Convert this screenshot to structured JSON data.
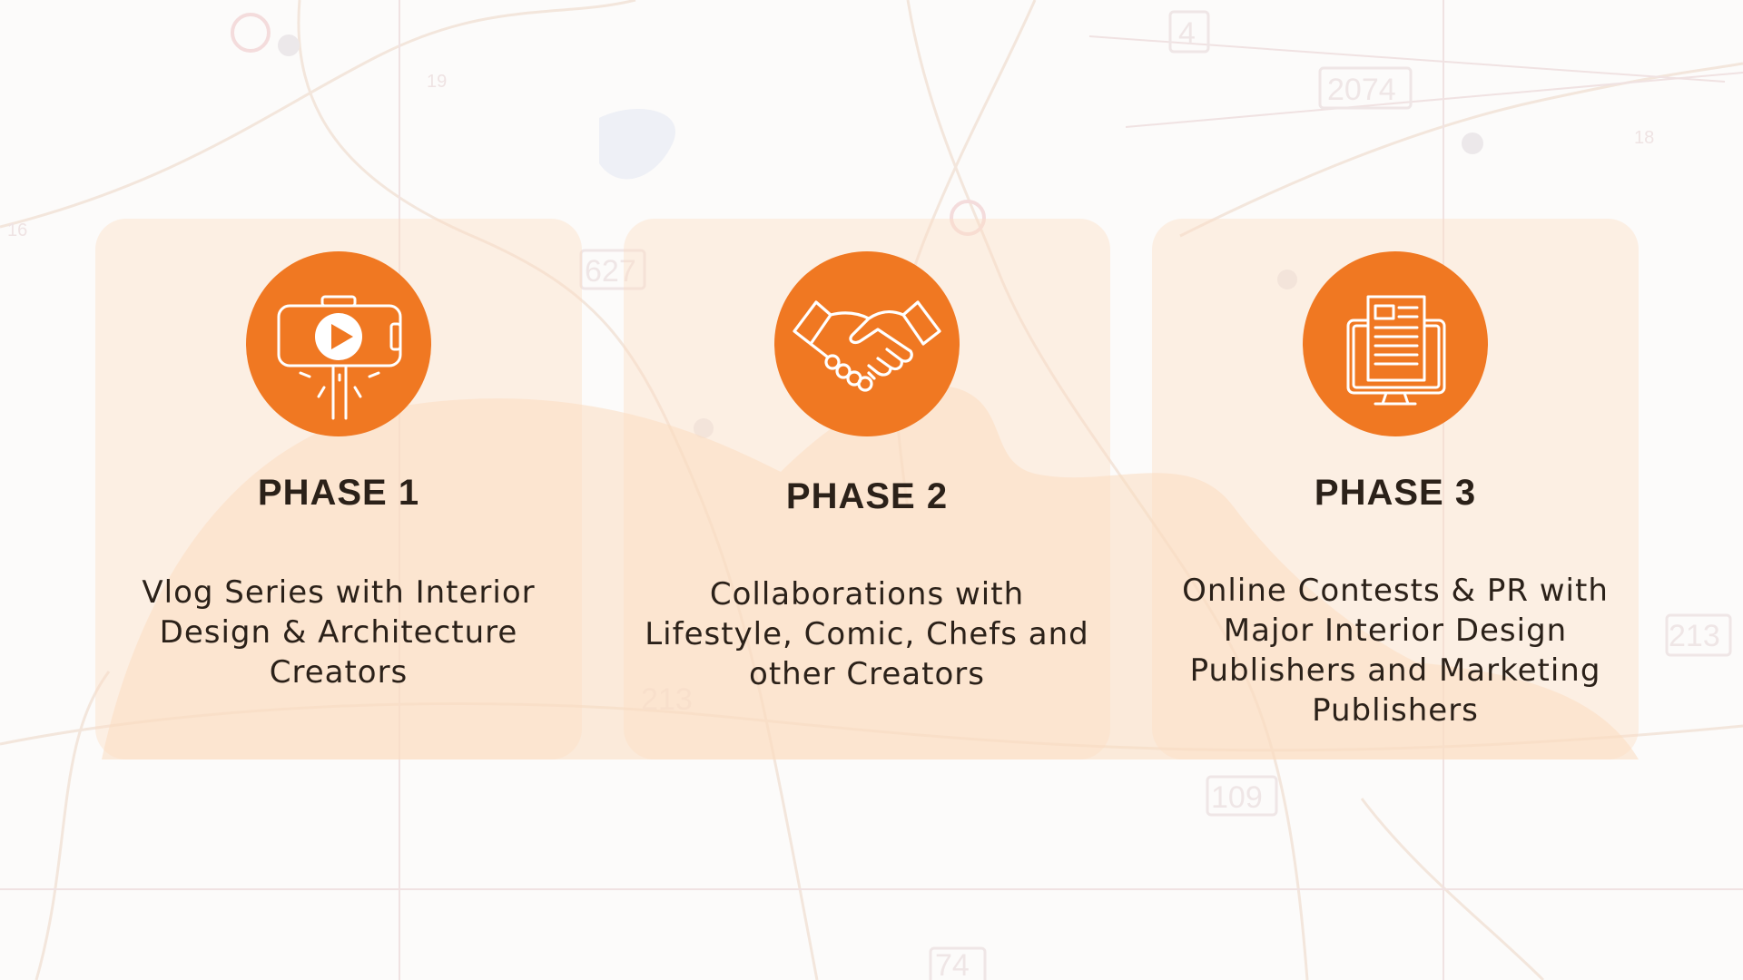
{
  "colors": {
    "accent": "#f07822",
    "card_tint": "#fcdec4",
    "text": "#2b2119",
    "background": "#fcfbfa"
  },
  "background": {
    "map_labels": [
      "4",
      "2074",
      "627",
      "213",
      "213",
      "109",
      "74",
      "18",
      "19",
      "16"
    ]
  },
  "phases": [
    {
      "title": "PHASE 1",
      "description": "Vlog Series with Interior Design & Architecture Creators",
      "icon": "selfie-stick-video-icon"
    },
    {
      "title": "PHASE 2",
      "description": "Collaborations with Lifestyle, Comic, Chefs and other Creators",
      "icon": "handshake-icon"
    },
    {
      "title": "PHASE 3",
      "description": "Online Contests & PR with Major Interior Design Publishers and Marketing Publishers",
      "icon": "monitor-article-icon"
    }
  ]
}
